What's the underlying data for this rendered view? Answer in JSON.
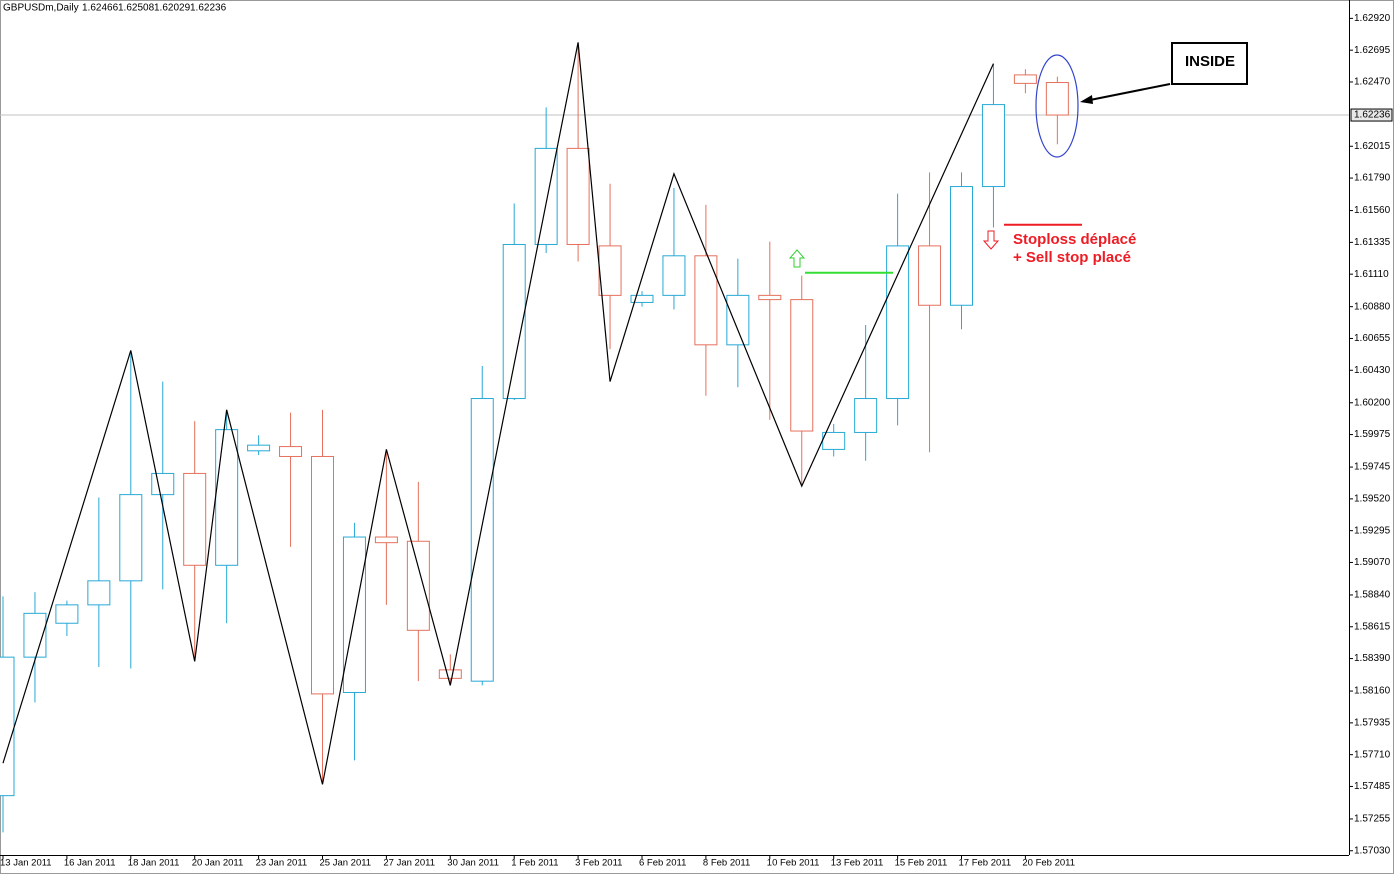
{
  "chart_data": {
    "type": "candlestick",
    "title": "GBPUSDm,Daily",
    "categories": [
      "13 Jan 2011",
      null,
      "16 Jan 2011",
      null,
      "18 Jan 2011",
      null,
      "20 Jan 2011",
      null,
      "23 Jan 2011",
      null,
      "25 Jan 2011",
      null,
      "27 Jan 2011",
      null,
      "30 Jan 2011",
      null,
      "1 Feb 2011",
      null,
      "3 Feb 2011",
      null,
      "6 Feb 2011",
      null,
      "8 Feb 2011",
      null,
      "10 Feb 2011",
      null,
      "13 Feb 2011",
      null,
      "15 Feb 2011",
      null,
      "17 Feb 2011",
      null,
      "20 Feb 2011",
      null
    ],
    "open": [
      1.5742,
      1.584,
      1.5864,
      1.5877,
      1.5894,
      1.5955,
      1.597,
      1.5905,
      1.5986,
      1.5989,
      1.5982,
      1.5815,
      1.5925,
      1.5922,
      1.5831,
      1.5823,
      1.6023,
      1.6132,
      1.62,
      1.6131,
      1.6091,
      1.6096,
      1.6124,
      1.6061,
      1.6096,
      1.6093,
      1.5987,
      1.5999,
      1.6023,
      1.6131,
      1.6089,
      1.6173,
      1.6252,
      1.62466
    ],
    "high": [
      1.5883,
      1.5886,
      1.588,
      1.5953,
      1.6057,
      1.6035,
      1.6007,
      1.6015,
      1.5997,
      1.6013,
      1.6015,
      1.5935,
      1.5987,
      1.5964,
      1.5842,
      1.6046,
      1.6161,
      1.6229,
      1.6275,
      1.6175,
      1.6099,
      1.6172,
      1.616,
      1.6122,
      1.6134,
      1.611,
      1.6005,
      1.6075,
      1.6168,
      1.6183,
      1.6183,
      1.626,
      1.6256,
      1.62508
    ],
    "low": [
      1.5716,
      1.5808,
      1.5855,
      1.5833,
      1.5832,
      1.5888,
      1.5838,
      1.5864,
      1.5983,
      1.5918,
      1.575,
      1.5767,
      1.5877,
      1.5823,
      1.582,
      1.582,
      1.6022,
      1.6126,
      1.612,
      1.6058,
      1.6088,
      1.6086,
      1.6025,
      1.6031,
      1.6008,
      1.5961,
      1.5982,
      1.5979,
      1.6004,
      1.5985,
      1.6072,
      1.6144,
      1.6239,
      1.62029
    ],
    "close": [
      1.584,
      1.5871,
      1.5877,
      1.5894,
      1.5955,
      1.597,
      1.5905,
      1.6001,
      1.599,
      1.5982,
      1.5814,
      1.5925,
      1.5921,
      1.5859,
      1.5825,
      1.6023,
      1.6132,
      1.62,
      1.6132,
      1.6096,
      1.6096,
      1.6124,
      1.6061,
      1.6096,
      1.6093,
      1.6,
      1.5999,
      1.6023,
      1.6131,
      1.6089,
      1.6173,
      1.6231,
      1.6246,
      1.62236
    ],
    "up_color": "#27a9d6",
    "down_color": "#e5705c",
    "ylim": [
      1.57,
      1.6305
    ],
    "yticks": [
      {
        "value": 1.6292,
        "label": "1.62920"
      },
      1.62695,
      {
        "value": 1.6247,
        "label": "1.62470"
      },
      1.62015,
      {
        "value": 1.6179,
        "label": "1.61790"
      },
      {
        "value": 1.6156,
        "label": "1.61560"
      },
      1.61335,
      {
        "value": 1.6111,
        "label": "1.61110"
      },
      {
        "value": 1.6088,
        "label": "1.60880"
      },
      1.60655,
      {
        "value": 1.6043,
        "label": "1.60430"
      },
      {
        "value": 1.602,
        "label": "1.60200"
      },
      1.59975,
      1.59745,
      {
        "value": 1.5952,
        "label": "1.59520"
      },
      1.59295,
      {
        "value": 1.5907,
        "label": "1.59070"
      },
      {
        "value": 1.5884,
        "label": "1.58840"
      },
      1.58615,
      {
        "value": 1.5839,
        "label": "1.58390"
      },
      {
        "value": 1.5816,
        "label": "1.58160"
      },
      1.57935,
      {
        "value": 1.5771,
        "label": "1.57710"
      },
      1.57485,
      1.57255,
      {
        "value": 1.5703,
        "label": "1.57030"
      }
    ],
    "zigzag": {
      "color": "#000000",
      "bars": [
        0,
        4,
        6,
        7,
        10,
        12,
        14,
        18,
        19,
        21,
        25,
        31
      ],
      "values": [
        1.5765,
        1.6057,
        1.5837,
        1.6015,
        1.575,
        1.5987,
        1.582,
        1.6275,
        1.6035,
        1.6182,
        1.5961,
        1.626
      ]
    },
    "levels": [
      {
        "value": 1.6146,
        "color": "#ee1c24"
      },
      {
        "value": 1.6112,
        "color": "#33dd33"
      }
    ],
    "annotations": {
      "box": "INSIDE",
      "note": [
        "Stoploss déplacé",
        "+ Sell stop placé"
      ]
    }
  }
}
